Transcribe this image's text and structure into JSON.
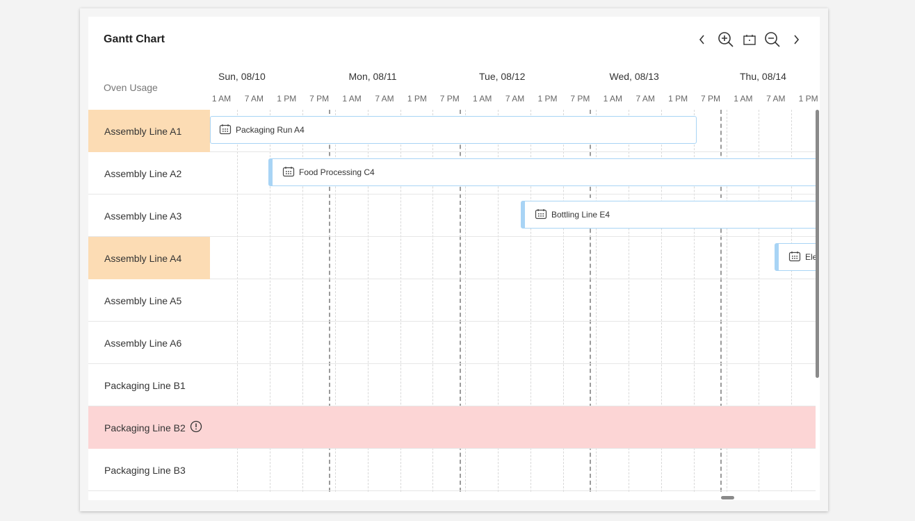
{
  "header": {
    "title": "Gantt Chart",
    "icons": [
      "chevron-left",
      "zoom-in",
      "today-calendar",
      "zoom-out",
      "chevron-right"
    ]
  },
  "row_header": "Oven Usage",
  "days": [
    "Sun, 08/10",
    "Mon, 08/11",
    "Tue, 08/12",
    "Wed, 08/13",
    "Thu, 08/14"
  ],
  "hours": [
    "1 AM",
    "7 AM",
    "1 PM",
    "7 PM",
    "1 AM",
    "7 AM",
    "1 PM",
    "7 PM",
    "1 AM",
    "7 AM",
    "1 PM",
    "7 PM",
    "1 AM",
    "7 AM",
    "1 PM",
    "7 PM",
    "1 AM",
    "7 AM",
    "1 PM"
  ],
  "rows": [
    {
      "label": "Assembly Line A1",
      "highlight": "#fcdcb4"
    },
    {
      "label": "Assembly Line A2"
    },
    {
      "label": "Assembly Line A3"
    },
    {
      "label": "Assembly Line A4",
      "highlight": "#fcdcb4"
    },
    {
      "label": "Assembly Line A5"
    },
    {
      "label": "Assembly Line A6"
    },
    {
      "label": "Packaging Line B1"
    },
    {
      "label": "Packaging Line B2",
      "highlight": "#fcd5d5",
      "alert": true
    },
    {
      "label": "Packaging Line B3"
    }
  ],
  "tasks": [
    {
      "label": "Packaging Run A4",
      "row": 0
    },
    {
      "label": "Food Processing C4",
      "row": 1
    },
    {
      "label": "Bottling Line E4",
      "row": 2
    },
    {
      "label": "Ele",
      "row": 3
    }
  ],
  "colors": {
    "bar_border": "#a8d4f5",
    "warning_row": "#fcd5d5",
    "highlight_row": "#fcdcb4"
  }
}
